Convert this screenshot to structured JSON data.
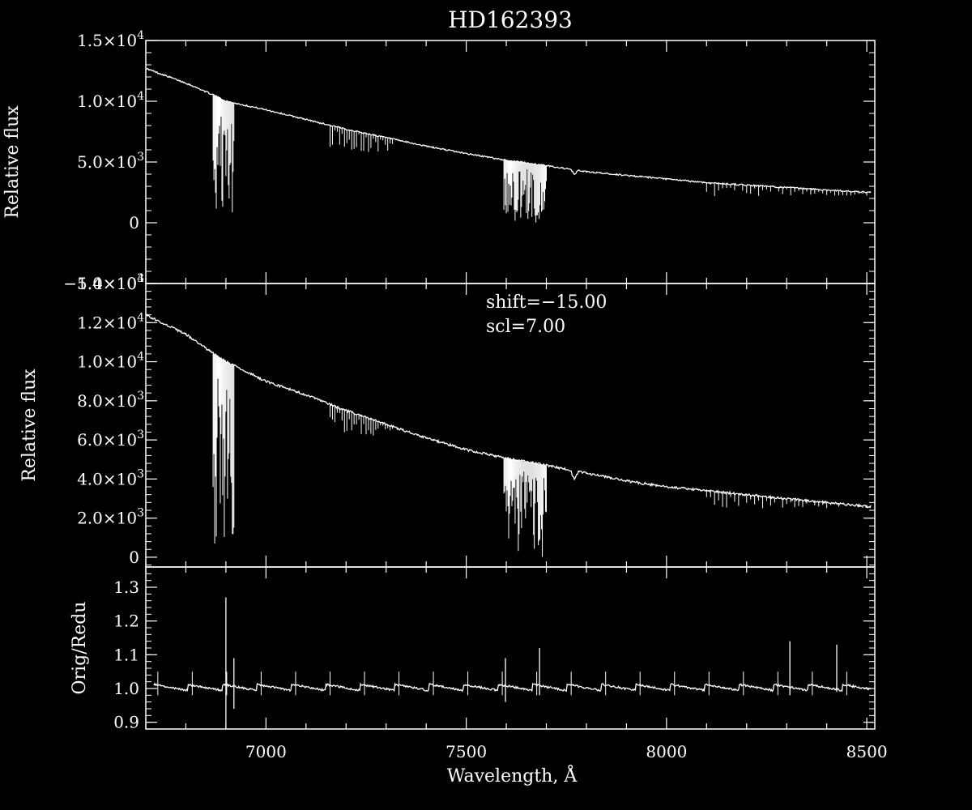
{
  "chart_data": {
    "type": "line",
    "title": "HD162393",
    "xlabel": "Wavelength, Å",
    "xlim": [
      6700,
      8520
    ],
    "x_ticks": [
      {
        "value": 7000,
        "label": "7000"
      },
      {
        "value": 7500,
        "label": "7500"
      },
      {
        "value": 8000,
        "label": "8000"
      },
      {
        "value": 8500,
        "label": "8500"
      }
    ],
    "colors": {
      "background": "#000000",
      "foreground": "#ffffff"
    },
    "panels": [
      {
        "id": "original",
        "ylabel": "Relative flux",
        "ylim": [
          -5000,
          15000
        ],
        "y_ticks": [
          {
            "value": -5000,
            "mant": "−5.0×10",
            "exp": "3"
          },
          {
            "value": 0,
            "mant": "0",
            "exp": ""
          },
          {
            "value": 5000,
            "mant": "5.0×10",
            "exp": "3"
          },
          {
            "value": 10000,
            "mant": "1.0×10",
            "exp": "4"
          },
          {
            "value": 15000,
            "mant": "1.5×10",
            "exp": "4"
          }
        ],
        "continuum": [
          [
            6700,
            12700
          ],
          [
            6800,
            11500
          ],
          [
            6870,
            10500
          ],
          [
            6900,
            10000
          ],
          [
            7000,
            9300
          ],
          [
            7100,
            8500
          ],
          [
            7200,
            7700
          ],
          [
            7300,
            7000
          ],
          [
            7400,
            6300
          ],
          [
            7500,
            5700
          ],
          [
            7590,
            5200
          ],
          [
            7700,
            4700
          ],
          [
            7800,
            4200
          ],
          [
            7900,
            3900
          ],
          [
            8000,
            3600
          ],
          [
            8100,
            3300
          ],
          [
            8200,
            3100
          ],
          [
            8300,
            2900
          ],
          [
            8400,
            2700
          ],
          [
            8500,
            2500
          ]
        ],
        "absorption": [
          {
            "x0": 6868,
            "x1": 6920,
            "depth_min": 300,
            "spacing": 2
          },
          {
            "x0": 7160,
            "x1": 7320,
            "depth_min": 5800,
            "spacing": 6
          },
          {
            "x0": 7594,
            "x1": 7700,
            "depth_min": 0,
            "spacing": 2
          },
          {
            "x0": 8100,
            "x1": 8500,
            "depth_min": 2200,
            "spacing": 10
          }
        ],
        "feature_dip": {
          "x": 7770,
          "depth": 350
        }
      },
      {
        "id": "corrected",
        "ylabel": "Relative flux",
        "ylim": [
          -500,
          14000
        ],
        "y_ticks": [
          {
            "value": 0,
            "mant": "0",
            "exp": ""
          },
          {
            "value": 2000,
            "mant": "2.0×10",
            "exp": "3"
          },
          {
            "value": 4000,
            "mant": "4.0×10",
            "exp": "3"
          },
          {
            "value": 6000,
            "mant": "6.0×10",
            "exp": "3"
          },
          {
            "value": 8000,
            "mant": "8.0×10",
            "exp": "3"
          },
          {
            "value": 10000,
            "mant": "1.0×10",
            "exp": "4"
          },
          {
            "value": 12000,
            "mant": "1.2×10",
            "exp": "4"
          },
          {
            "value": 14000,
            "mant": "1.4×10",
            "exp": "4"
          }
        ],
        "continuum": [
          [
            6700,
            12400
          ],
          [
            6800,
            11400
          ],
          [
            6870,
            10400
          ],
          [
            6900,
            10000
          ],
          [
            7000,
            9000
          ],
          [
            7100,
            8300
          ],
          [
            7200,
            7500
          ],
          [
            7300,
            6800
          ],
          [
            7400,
            6100
          ],
          [
            7500,
            5500
          ],
          [
            7590,
            5100
          ],
          [
            7700,
            4700
          ],
          [
            7800,
            4300
          ],
          [
            7900,
            3900
          ],
          [
            8000,
            3600
          ],
          [
            8100,
            3400
          ],
          [
            8200,
            3200
          ],
          [
            8300,
            3000
          ],
          [
            8400,
            2800
          ],
          [
            8500,
            2600
          ]
        ],
        "absorption": [
          {
            "x0": 6868,
            "x1": 6920,
            "depth_min": 700,
            "spacing": 2
          },
          {
            "x0": 7160,
            "x1": 7320,
            "depth_min": 6200,
            "spacing": 6
          },
          {
            "x0": 7594,
            "x1": 7700,
            "depth_min": 0,
            "spacing": 2
          },
          {
            "x0": 8100,
            "x1": 8500,
            "depth_min": 2500,
            "spacing": 10
          }
        ],
        "feature_dip": {
          "x": 7770,
          "depth": 450
        },
        "annotations": [
          "shift=−15.00",
          "scl=7.00"
        ]
      },
      {
        "id": "ratio",
        "ylabel": "Orig/Redu",
        "ylim": [
          0.88,
          1.36
        ],
        "y_ticks": [
          {
            "value": 0.9,
            "mant": "0.9",
            "exp": ""
          },
          {
            "value": 1.0,
            "mant": "1.0",
            "exp": ""
          },
          {
            "value": 1.1,
            "mant": "1.1",
            "exp": ""
          },
          {
            "value": 1.2,
            "mant": "1.2",
            "exp": ""
          },
          {
            "value": 1.3,
            "mant": "1.3",
            "exp": ""
          }
        ],
        "baseline": 1.0,
        "ripple_period": 86,
        "ripple_amplitude": 0.03,
        "spikes": [
          {
            "x": 6900,
            "min": 0.88,
            "max": 1.27
          },
          {
            "x": 6920,
            "min": 0.94,
            "max": 1.09
          },
          {
            "x": 7598,
            "min": 0.96,
            "max": 1.09
          },
          {
            "x": 7683,
            "min": 0.98,
            "max": 1.12
          },
          {
            "x": 8308,
            "min": 0.98,
            "max": 1.14
          },
          {
            "x": 8425,
            "min": 0.99,
            "max": 1.13
          }
        ]
      }
    ]
  }
}
